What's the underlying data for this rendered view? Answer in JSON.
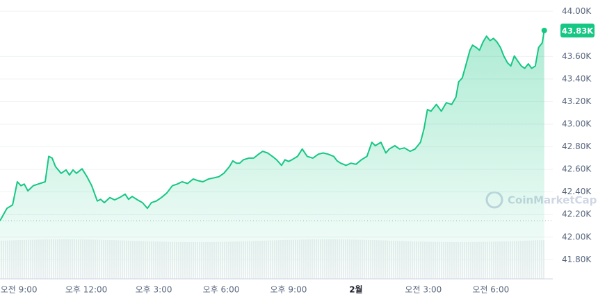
{
  "chart_data": {
    "type": "line",
    "x": [
      8.16,
      8.47,
      8.72,
      8.93,
      9.09,
      9.24,
      9.4,
      9.64,
      9.86,
      10.17,
      10.33,
      10.48,
      10.63,
      10.88,
      11.1,
      11.25,
      11.41,
      11.56,
      11.81,
      12.03,
      12.24,
      12.49,
      12.64,
      12.8,
      13.05,
      13.26,
      13.48,
      13.73,
      13.88,
      14.04,
      14.28,
      14.5,
      14.72,
      14.9,
      15.12,
      15.34,
      15.58,
      15.83,
      16.05,
      16.26,
      16.51,
      16.76,
      16.97,
      17.19,
      17.44,
      17.69,
      17.9,
      18.12,
      18.37,
      18.52,
      18.68,
      18.83,
      18.99,
      19.23,
      19.45,
      19.67,
      19.85,
      20.07,
      20.28,
      20.47,
      20.69,
      20.84,
      21.0,
      21.15,
      21.4,
      21.61,
      21.83,
      22.08,
      22.33,
      22.54,
      22.76,
      23.01,
      23.16,
      23.32,
      23.56,
      23.78,
      24.0,
      24.24,
      24.49,
      24.71,
      24.86,
      25.11,
      25.33,
      25.48,
      25.73,
      25.94,
      26.16,
      26.41,
      26.63,
      26.87,
      27.03,
      27.18,
      27.34,
      27.58,
      27.8,
      28.02,
      28.26,
      28.45,
      28.57,
      28.73,
      28.88,
      29.07,
      29.19,
      29.35,
      29.5,
      29.66,
      29.81,
      29.97,
      30.12,
      30.27,
      30.43,
      30.58,
      30.74,
      30.89,
      31.05,
      31.2,
      31.36,
      31.51,
      31.67,
      31.82,
      31.98,
      32.13,
      32.29,
      32.38
    ],
    "series": [
      {
        "color": "#16c784",
        "values": [
          42145,
          42255,
          42285,
          42490,
          42455,
          42470,
          42410,
          42455,
          42470,
          42490,
          42715,
          42700,
          42625,
          42565,
          42595,
          42550,
          42595,
          42565,
          42605,
          42535,
          42455,
          42320,
          42335,
          42305,
          42350,
          42330,
          42350,
          42380,
          42335,
          42360,
          42330,
          42305,
          42255,
          42305,
          42320,
          42350,
          42390,
          42455,
          42470,
          42490,
          42475,
          42515,
          42500,
          42490,
          42515,
          42525,
          42535,
          42565,
          42625,
          42675,
          42655,
          42655,
          42685,
          42700,
          42700,
          42735,
          42760,
          42745,
          42715,
          42685,
          42635,
          42685,
          42670,
          42685,
          42715,
          42780,
          42715,
          42700,
          42735,
          42745,
          42735,
          42715,
          42675,
          42655,
          42635,
          42655,
          42645,
          42685,
          42715,
          42840,
          42810,
          42840,
          42745,
          42780,
          42810,
          42780,
          42790,
          42760,
          42780,
          42840,
          42960,
          43130,
          43115,
          43175,
          43115,
          43190,
          43175,
          43240,
          43375,
          43410,
          43515,
          43655,
          43700,
          43680,
          43655,
          43730,
          43780,
          43740,
          43760,
          43730,
          43680,
          43605,
          43545,
          43515,
          43605,
          43560,
          43515,
          43495,
          43535,
          43495,
          43515,
          43680,
          43720,
          43830
        ]
      }
    ],
    "xlim": [
      8.16,
      32.76
    ],
    "xticks": [
      {
        "value": 9,
        "label": "오전 9:00"
      },
      {
        "value": 12,
        "label": "오후 12:00"
      },
      {
        "value": 15,
        "label": "오후 3:00"
      },
      {
        "value": 18,
        "label": "오후 6:00"
      },
      {
        "value": 21,
        "label": "오후 9:00"
      },
      {
        "value": 24,
        "label": "2월"
      },
      {
        "value": 27,
        "label": "오전 3:00"
      },
      {
        "value": 30,
        "label": "오전 6:00"
      }
    ],
    "ylim": [
      41630,
      44100
    ],
    "yticks": [
      {
        "value": 41800,
        "label": "41.80K"
      },
      {
        "value": 42000,
        "label": "42.00K"
      },
      {
        "value": 42200,
        "label": "42.20K"
      },
      {
        "value": 42400,
        "label": "42.40K"
      },
      {
        "value": 42600,
        "label": "42.60K"
      },
      {
        "value": 42800,
        "label": "42.80K"
      },
      {
        "value": 43000,
        "label": "43.00K"
      },
      {
        "value": 43200,
        "label": "43.20K"
      },
      {
        "value": 43400,
        "label": "43.40K"
      },
      {
        "value": 43600,
        "label": "43.60K"
      },
      {
        "value": 44000,
        "label": "44.00K"
      }
    ],
    "grid": true,
    "reference_line": 42145,
    "last_price": {
      "value": 43830,
      "label": "43.83K"
    },
    "watermark": "CoinMarketCap"
  }
}
